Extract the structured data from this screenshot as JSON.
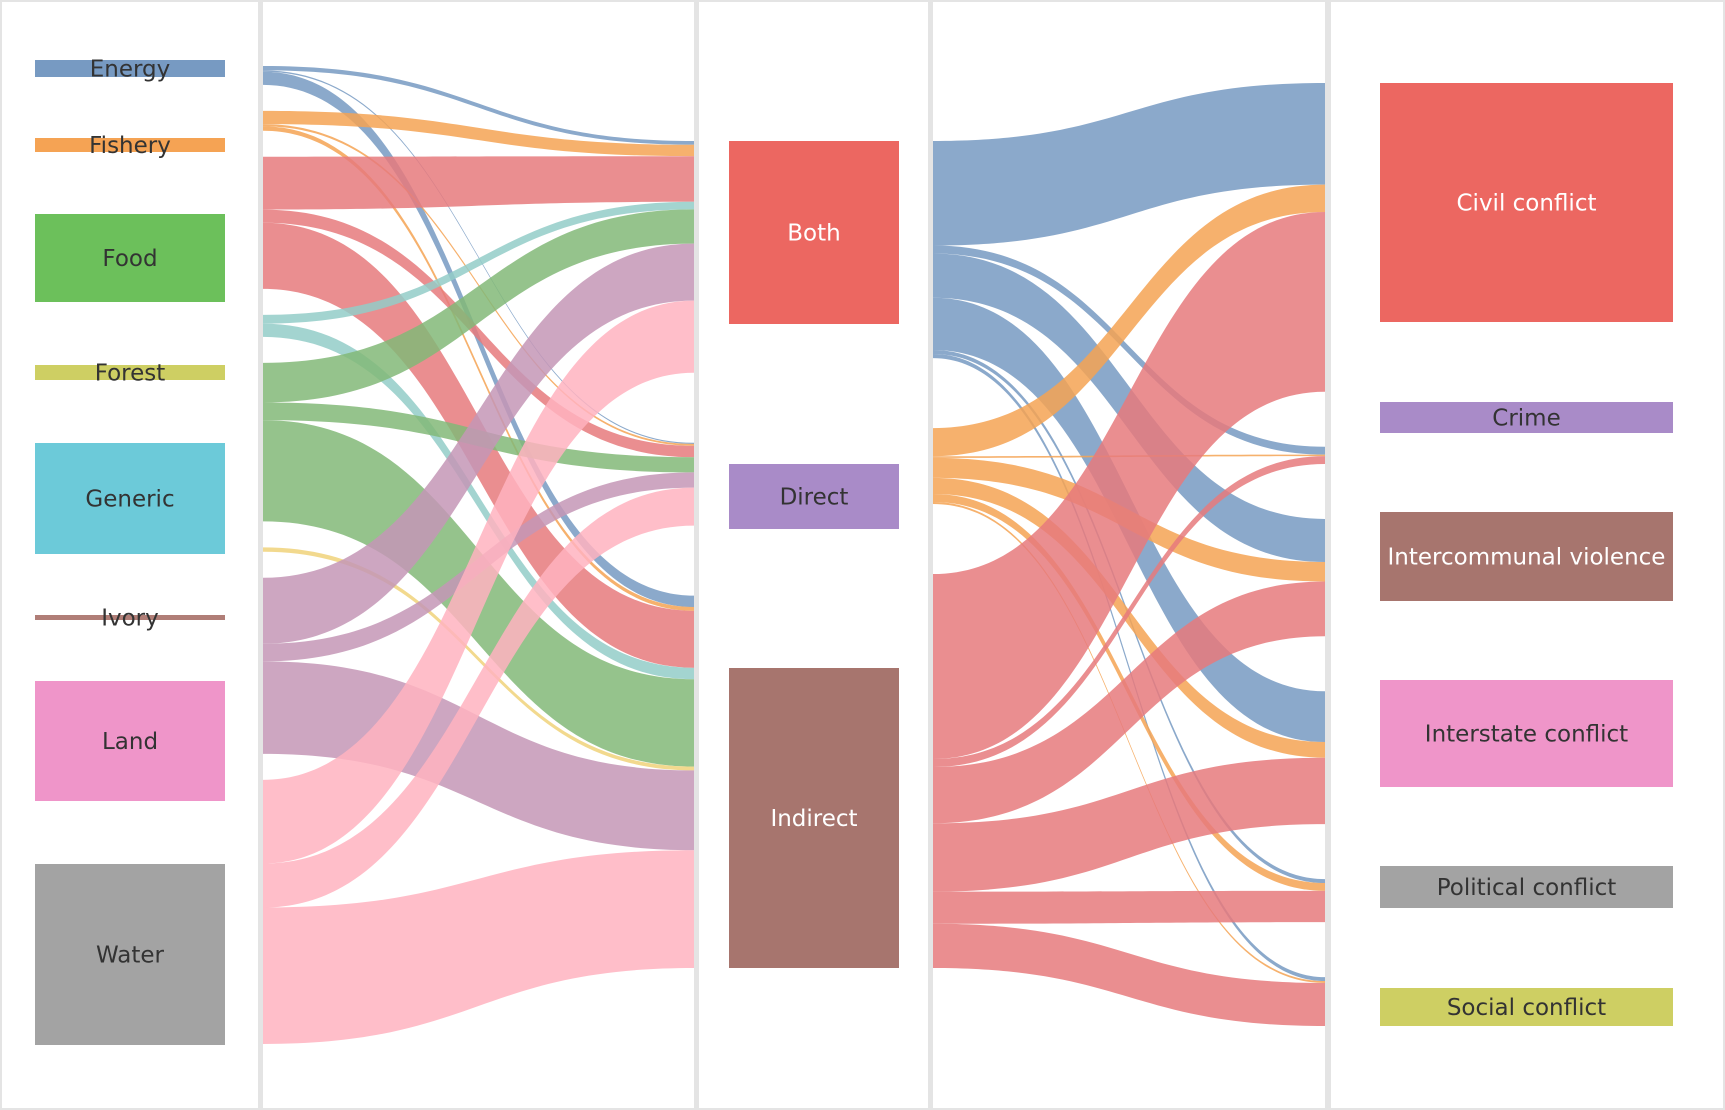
{
  "chart_data": {
    "type": "sankey",
    "stages": [
      {
        "key": "resource",
        "nodes": [
          {
            "name": "Energy",
            "color": "#779ac2",
            "text_color": "#333333"
          },
          {
            "name": "Fishery",
            "color": "#f5a354",
            "text_color": "#333333"
          },
          {
            "name": "Food",
            "color": "#6cc05b",
            "text_color": "#333333"
          },
          {
            "name": "Forest",
            "color": "#cecf63",
            "text_color": "#333333"
          },
          {
            "name": "Generic",
            "color": "#6ccad9",
            "text_color": "#333333"
          },
          {
            "name": "Ivory",
            "color": "#b07e77",
            "text_color": "#333333"
          },
          {
            "name": "Land",
            "color": "#ef95c9",
            "text_color": "#333333"
          },
          {
            "name": "Water",
            "color": "#a3a3a3",
            "text_color": "#333333"
          }
        ]
      },
      {
        "key": "pathway",
        "nodes": [
          {
            "name": "Both",
            "color": "#ec6761",
            "text_color": "#ffffff"
          },
          {
            "name": "Direct",
            "color": "#a98bc8",
            "text_color": "#333333"
          },
          {
            "name": "Indirect",
            "color": "#a7756e",
            "text_color": "#ffffff"
          }
        ]
      },
      {
        "key": "conflict",
        "nodes": [
          {
            "name": "Civil conflict",
            "color": "#ec6761",
            "text_color": "#ffffff"
          },
          {
            "name": "Crime",
            "color": "#a98bc8",
            "text_color": "#333333"
          },
          {
            "name": "Intercommunal violence",
            "color": "#a7756e",
            "text_color": "#ffffff"
          },
          {
            "name": "Interstate conflict",
            "color": "#ef95c9",
            "text_color": "#333333"
          },
          {
            "name": "Political conflict",
            "color": "#a3a3a3",
            "text_color": "#333333"
          },
          {
            "name": "Social conflict",
            "color": "#cecf63",
            "text_color": "#333333"
          }
        ]
      }
    ],
    "flows_left": [
      {
        "source": "Energy",
        "target": "Both",
        "value": 1,
        "color": "#779ac2"
      },
      {
        "source": "Energy",
        "target": "Direct",
        "value": 0.3,
        "color": "#779ac2"
      },
      {
        "source": "Energy",
        "target": "Indirect",
        "value": 3,
        "color": "#779ac2"
      },
      {
        "source": "Fishery",
        "target": "Both",
        "value": 3,
        "color": "#f5a354"
      },
      {
        "source": "Fishery",
        "target": "Direct",
        "value": 0.5,
        "color": "#f5a354"
      },
      {
        "source": "Fishery",
        "target": "Indirect",
        "value": 1,
        "color": "#f5a354"
      },
      {
        "source": "Food",
        "target": "Both",
        "value": 12,
        "color": "#e67a7c"
      },
      {
        "source": "Food",
        "target": "Direct",
        "value": 3,
        "color": "#e67a7c"
      },
      {
        "source": "Food",
        "target": "Indirect",
        "value": 15,
        "color": "#e67a7c"
      },
      {
        "source": "Forest",
        "target": "Both",
        "value": 2,
        "color": "#93cdc8"
      },
      {
        "source": "Forest",
        "target": "Indirect",
        "value": 3,
        "color": "#93cdc8"
      },
      {
        "source": "Generic",
        "target": "Both",
        "value": 9,
        "color": "#82b878"
      },
      {
        "source": "Generic",
        "target": "Direct",
        "value": 4,
        "color": "#82b878"
      },
      {
        "source": "Generic",
        "target": "Indirect",
        "value": 23,
        "color": "#82b878"
      },
      {
        "source": "Ivory",
        "target": "Indirect",
        "value": 1,
        "color": "#f0d27a"
      },
      {
        "source": "Land",
        "target": "Both",
        "value": 15,
        "color": "#c496b6"
      },
      {
        "source": "Land",
        "target": "Direct",
        "value": 4,
        "color": "#c496b6"
      },
      {
        "source": "Land",
        "target": "Indirect",
        "value": 21,
        "color": "#c496b6"
      },
      {
        "source": "Water",
        "target": "Both",
        "value": 19,
        "color": "#ffb3bf"
      },
      {
        "source": "Water",
        "target": "Direct",
        "value": 10,
        "color": "#ffb3bf"
      },
      {
        "source": "Water",
        "target": "Indirect",
        "value": 31,
        "color": "#ffb3bf"
      }
    ],
    "flows_right": [
      {
        "source": "Both",
        "target": "Civil conflict",
        "value": 26,
        "color": "#779ac2"
      },
      {
        "source": "Both",
        "target": "Crime",
        "value": 2,
        "color": "#779ac2"
      },
      {
        "source": "Both",
        "target": "Intercommunal violence",
        "value": 11,
        "color": "#779ac2"
      },
      {
        "source": "Both",
        "target": "Interstate conflict",
        "value": 13,
        "color": "#779ac2"
      },
      {
        "source": "Both",
        "target": "Political conflict",
        "value": 1,
        "color": "#779ac2"
      },
      {
        "source": "Both",
        "target": "Social conflict",
        "value": 1,
        "color": "#779ac2"
      },
      {
        "source": "Direct",
        "target": "Civil conflict",
        "value": 7,
        "color": "#f5a354"
      },
      {
        "source": "Direct",
        "target": "Crime",
        "value": 0.4,
        "color": "#f5a354"
      },
      {
        "source": "Direct",
        "target": "Intercommunal violence",
        "value": 5,
        "color": "#f5a354"
      },
      {
        "source": "Direct",
        "target": "Interstate conflict",
        "value": 4,
        "color": "#f5a354"
      },
      {
        "source": "Direct",
        "target": "Political conflict",
        "value": 2,
        "color": "#f5a354"
      },
      {
        "source": "Direct",
        "target": "Social conflict",
        "value": 0.5,
        "color": "#f5a354"
      },
      {
        "source": "Indirect",
        "target": "Civil conflict",
        "value": 46,
        "color": "#e67a7c"
      },
      {
        "source": "Indirect",
        "target": "Crime",
        "value": 2,
        "color": "#e67a7c"
      },
      {
        "source": "Indirect",
        "target": "Intercommunal violence",
        "value": 14,
        "color": "#e67a7c"
      },
      {
        "source": "Indirect",
        "target": "Interstate conflict",
        "value": 17,
        "color": "#e67a7c"
      },
      {
        "source": "Indirect",
        "target": "Political conflict",
        "value": 8,
        "color": "#e67a7c"
      },
      {
        "source": "Indirect",
        "target": "Social conflict",
        "value": 11,
        "color": "#e67a7c"
      }
    ]
  }
}
